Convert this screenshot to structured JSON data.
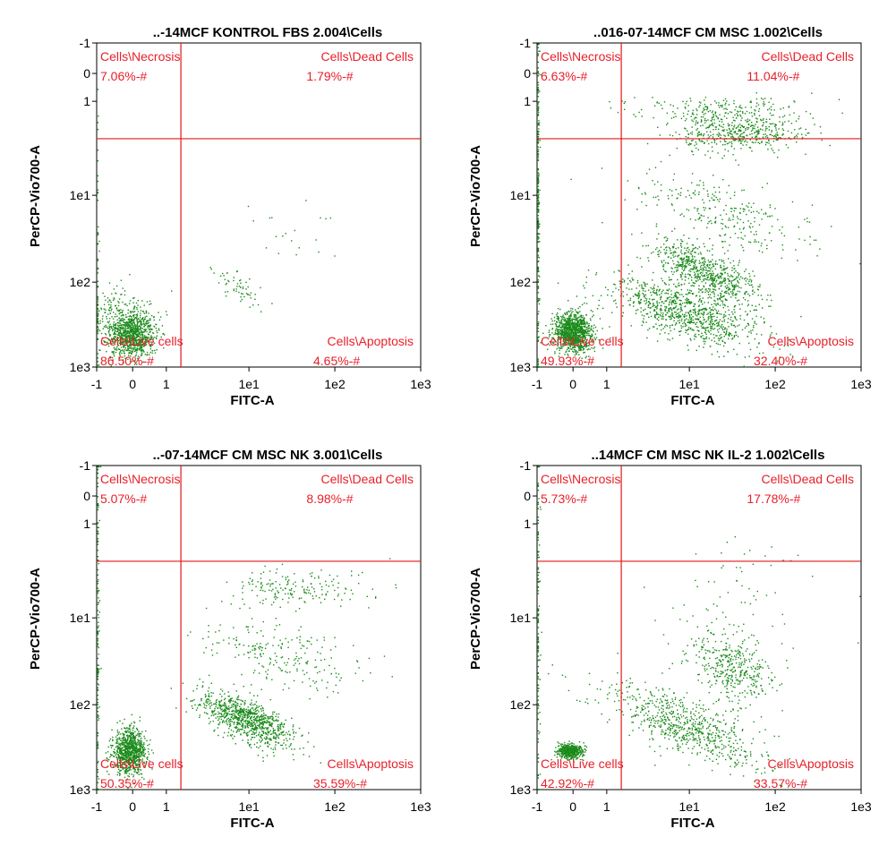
{
  "colors": {
    "gate": "#e01818",
    "dots": "#1a8a1a",
    "label": "#e8202a",
    "frame": "#000000"
  },
  "chart_data": [
    {
      "type": "scatter",
      "title": "..-14MCF KONTROL FBS 2.004\\Cells",
      "xlabel": "FITC-A",
      "ylabel": "PerCP-Vio700-A",
      "scale": "biexponential",
      "xlim": [
        "-1",
        "1e3"
      ],
      "ylim": [
        "-1",
        "1e3"
      ],
      "x_ticks": [
        "-1",
        "0",
        "1",
        "1e1",
        "1e2",
        "1e3"
      ],
      "y_ticks": [
        "1e3",
        "1e2",
        "1e1",
        "1",
        "0",
        "-1"
      ],
      "gate": {
        "x": 1.5,
        "y": 2.5
      },
      "quadrants": [
        {
          "name": "Cells\\Necrosis",
          "value": "7.06%-#"
        },
        {
          "name": "Cells\\Dead Cells",
          "value": "1.79%-#"
        },
        {
          "name": "Cells\\Live cells",
          "value": "86.50%-#"
        },
        {
          "name": "Cells\\Apoptosis",
          "value": "4.65%-#"
        }
      ]
    },
    {
      "type": "scatter",
      "title": "..016-07-14MCF CM MSC 1.002\\Cells",
      "xlabel": "FITC-A",
      "ylabel": "PerCP-Vio700-A",
      "scale": "biexponential",
      "xlim": [
        "-1",
        "1e3"
      ],
      "ylim": [
        "-1",
        "1e3"
      ],
      "x_ticks": [
        "-1",
        "0",
        "1",
        "1e1",
        "1e2",
        "1e3"
      ],
      "y_ticks": [
        "1e3",
        "1e2",
        "1e1",
        "1",
        "0",
        "-1"
      ],
      "gate": {
        "x": 1.5,
        "y": 2.5
      },
      "quadrants": [
        {
          "name": "Cells\\Necrosis",
          "value": "6.63%-#"
        },
        {
          "name": "Cells\\Dead Cells",
          "value": "11.04%-#"
        },
        {
          "name": "Cells\\Live cells",
          "value": "49.93%-#"
        },
        {
          "name": "Cells\\Apoptosis",
          "value": "32.40%-#"
        }
      ]
    },
    {
      "type": "scatter",
      "title": "..-07-14MCF CM MSC NK 3.001\\Cells",
      "xlabel": "FITC-A",
      "ylabel": "PerCP-Vio700-A",
      "scale": "biexponential",
      "xlim": [
        "-1",
        "1e3"
      ],
      "ylim": [
        "-1",
        "1e3"
      ],
      "x_ticks": [
        "-1",
        "0",
        "1",
        "1e1",
        "1e2",
        "1e3"
      ],
      "y_ticks": [
        "1e3",
        "1e2",
        "1e1",
        "1",
        "0",
        "-1"
      ],
      "gate": {
        "x": 1.5,
        "y": 2.5
      },
      "quadrants": [
        {
          "name": "Cells\\Necrosis",
          "value": "5.07%-#"
        },
        {
          "name": "Cells\\Dead Cells",
          "value": "8.98%-#"
        },
        {
          "name": "Cells\\Live cells",
          "value": "50.35%-#"
        },
        {
          "name": "Cells\\Apoptosis",
          "value": "35.59%-#"
        }
      ]
    },
    {
      "type": "scatter",
      "title": "..14MCF CM MSC NK IL-2 1.002\\Cells",
      "xlabel": "FITC-A",
      "ylabel": "PerCP-Vio700-A",
      "scale": "biexponential",
      "xlim": [
        "-1",
        "1e3"
      ],
      "ylim": [
        "-1",
        "1e3"
      ],
      "x_ticks": [
        "-1",
        "0",
        "1",
        "1e1",
        "1e2",
        "1e3"
      ],
      "y_ticks": [
        "1e3",
        "1e2",
        "1e1",
        "1",
        "0",
        "-1"
      ],
      "gate": {
        "x": 1.5,
        "y": 2.5
      },
      "quadrants": [
        {
          "name": "Cells\\Necrosis",
          "value": "5.73%-#"
        },
        {
          "name": "Cells\\Dead Cells",
          "value": "17.78%-#"
        },
        {
          "name": "Cells\\Live cells",
          "value": "42.92%-#"
        },
        {
          "name": "Cells\\Apoptosis",
          "value": "33.57%-#"
        }
      ]
    }
  ]
}
